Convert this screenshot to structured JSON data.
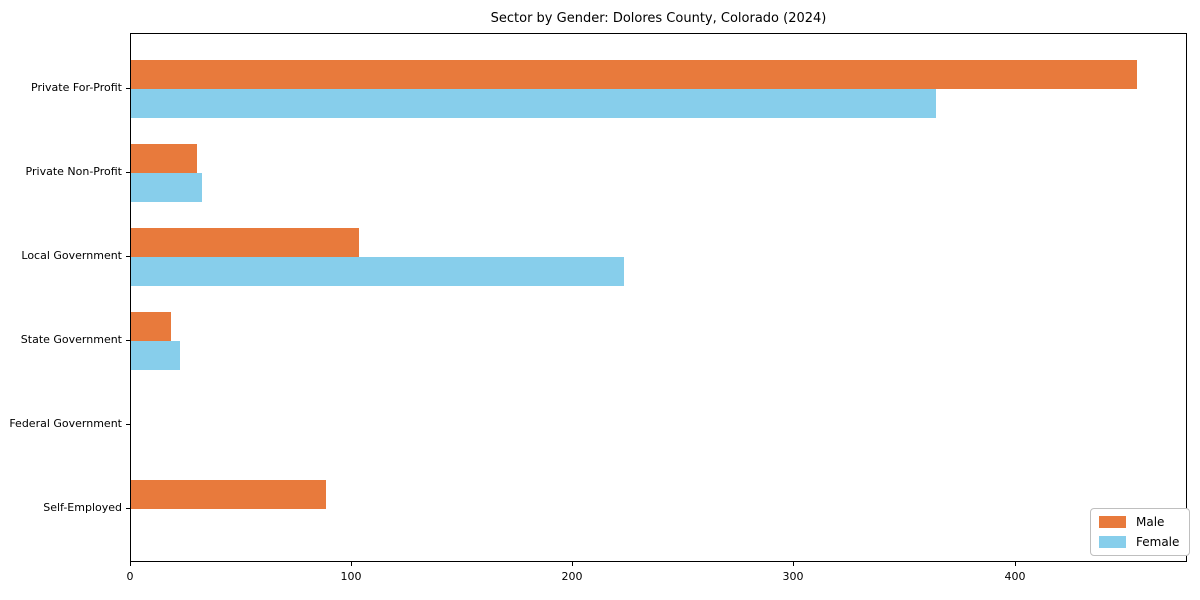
{
  "chart_data": {
    "type": "bar",
    "orientation": "horizontal",
    "title": "Sector by Gender: Dolores County, Colorado (2024)",
    "categories": [
      "Private For-Profit",
      "Private Non-Profit",
      "Local Government",
      "State Government",
      "Federal Government",
      "Self-Employed"
    ],
    "series": [
      {
        "name": "Male",
        "color": "#e87a3c",
        "values": [
          455,
          30,
          103,
          18,
          0,
          88
        ]
      },
      {
        "name": "Female",
        "color": "#87ceeb",
        "values": [
          364,
          32,
          223,
          22,
          0,
          0
        ]
      }
    ],
    "xlabel": "",
    "ylabel": "",
    "xlim": [
      0,
      478
    ],
    "xticks": [
      0,
      100,
      200,
      300,
      400
    ],
    "grid": false,
    "legend_position": "lower right"
  }
}
